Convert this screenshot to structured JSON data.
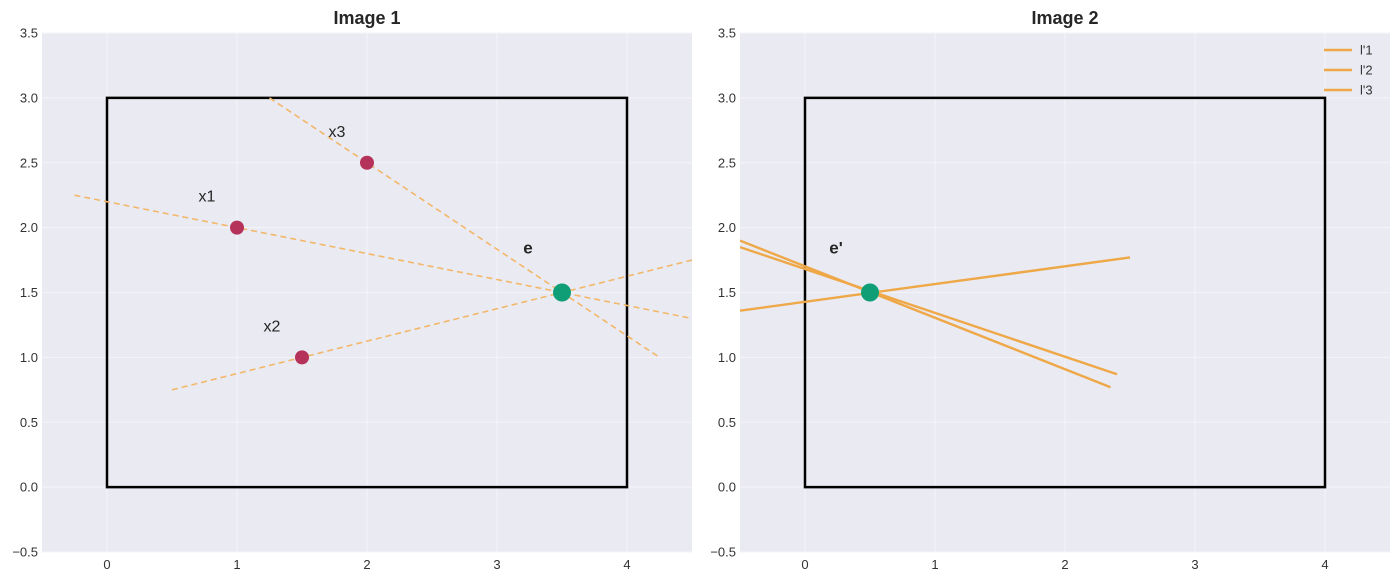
{
  "colors": {
    "plot_bg": "#eaeaf2",
    "grid": "#f4f4f8",
    "dashed_line": "#f3b76a",
    "solid_line": "#eea848",
    "point": "#b5335a",
    "epipole": "#0f9e76",
    "box": "#000000"
  },
  "chart_data": [
    {
      "type": "line",
      "title": "Image 1",
      "xlim": [
        -0.5,
        4.5
      ],
      "ylim": [
        -0.5,
        3.5
      ],
      "xticks": [
        0,
        1,
        2,
        3,
        4
      ],
      "yticks": [
        -0.5,
        0.0,
        0.5,
        1.0,
        1.5,
        2.0,
        2.5,
        3.0,
        3.5
      ],
      "ytick_labels": [
        "−0.5",
        "0.0",
        "0.5",
        "1.0",
        "1.5",
        "2.0",
        "2.5",
        "3.0",
        "3.5"
      ],
      "rectangle": {
        "x": [
          0,
          4
        ],
        "y": [
          0,
          3
        ]
      },
      "lines": [
        {
          "x": [
            -0.25,
            4.5
          ],
          "y": [
            2.25,
            1.3
          ],
          "style": "dashed"
        },
        {
          "x": [
            0.5,
            4.5
          ],
          "y": [
            0.75,
            1.75
          ],
          "style": "dashed"
        },
        {
          "x": [
            1.25,
            4.25
          ],
          "y": [
            3.0,
            1.0
          ],
          "style": "dashed"
        }
      ],
      "points": [
        {
          "label": "x1",
          "x": 1.0,
          "y": 2.0
        },
        {
          "label": "x2",
          "x": 1.5,
          "y": 1.0
        },
        {
          "label": "x3",
          "x": 2.0,
          "y": 2.5
        }
      ],
      "epipole": {
        "label": "e",
        "x": 3.5,
        "y": 1.5
      }
    },
    {
      "type": "line",
      "title": "Image 2",
      "xlim": [
        -0.5,
        4.5
      ],
      "ylim": [
        -0.5,
        3.5
      ],
      "xticks": [
        0,
        1,
        2,
        3,
        4
      ],
      "yticks": [
        -0.5,
        0.0,
        0.5,
        1.0,
        1.5,
        2.0,
        2.5,
        3.0,
        3.5
      ],
      "ytick_labels": [
        "−0.5",
        "0.0",
        "0.5",
        "1.0",
        "1.5",
        "2.0",
        "2.5",
        "3.0",
        "3.5"
      ],
      "rectangle": {
        "x": [
          0,
          4
        ],
        "y": [
          0,
          3
        ]
      },
      "series": [
        {
          "name": "l'1",
          "x": [
            -0.5,
            2.4
          ],
          "y": [
            1.85,
            0.87
          ]
        },
        {
          "name": "l'2",
          "x": [
            -0.5,
            2.5
          ],
          "y": [
            1.36,
            1.77
          ]
        },
        {
          "name": "l'3",
          "x": [
            -0.5,
            2.35
          ],
          "y": [
            1.9,
            0.77
          ]
        }
      ],
      "legend": "top-right",
      "epipole": {
        "label": "e'",
        "x": 0.5,
        "y": 1.5
      }
    }
  ]
}
